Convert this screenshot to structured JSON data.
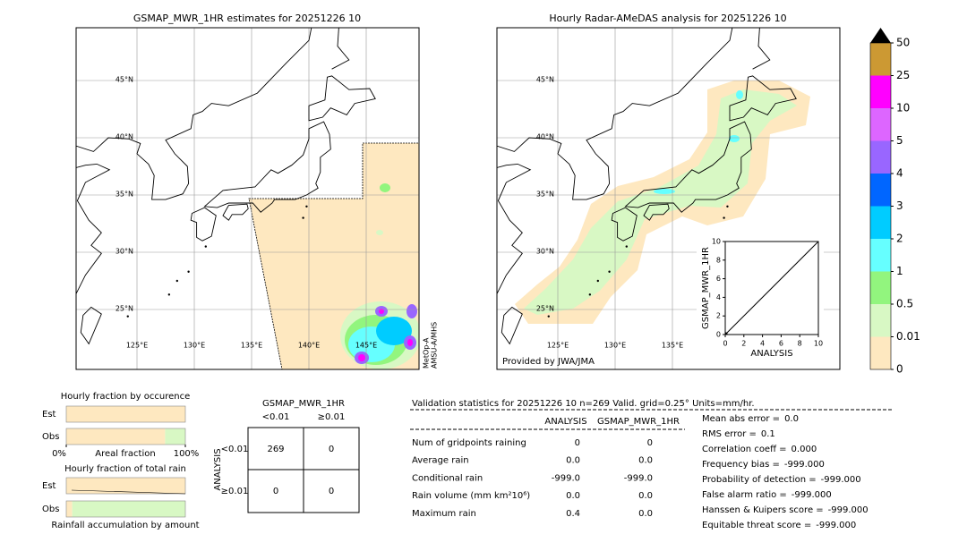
{
  "left_map": {
    "title": "GSMAP_MWR_1HR estimates for 20251226 10",
    "lat_labels": [
      {
        "value": 45,
        "label": "45°N"
      },
      {
        "value": 40,
        "label": "40°N"
      },
      {
        "value": 35,
        "label": "35°N"
      },
      {
        "value": 30,
        "label": "30°N"
      },
      {
        "value": 25,
        "label": "25°N"
      }
    ],
    "lon_labels": [
      {
        "value": 125,
        "label": "125°E"
      },
      {
        "value": 130,
        "label": "130°E"
      },
      {
        "value": 135,
        "label": "135°E"
      },
      {
        "value": 140,
        "label": "140°E"
      },
      {
        "value": 145,
        "label": "145°E"
      }
    ],
    "satellite_label": [
      "MetOp-A",
      "AMSU-A/MHS"
    ]
  },
  "right_map": {
    "title": "Hourly Radar-AMeDAS analysis for 20251226 10",
    "lat_labels": [
      {
        "value": 45,
        "label": "45°N"
      },
      {
        "value": 40,
        "label": "40°N"
      },
      {
        "value": 35,
        "label": "35°N"
      },
      {
        "value": 30,
        "label": "30°N"
      },
      {
        "value": 25,
        "label": "25°N"
      }
    ],
    "lon_labels": [
      {
        "value": 125,
        "label": "125°E"
      },
      {
        "value": 130,
        "label": "130°E"
      },
      {
        "value": 135,
        "label": "135°E"
      }
    ],
    "credit": "Provided by JWA/JMA"
  },
  "scatter": {
    "xlabel": "ANALYSIS",
    "ylabel": "GSMAP_MWR_1HR",
    "xlim": [
      0,
      10
    ],
    "ylim": [
      0,
      10
    ],
    "xticks": [
      0,
      2,
      4,
      6,
      8,
      10
    ],
    "yticks": [
      0,
      2,
      4,
      6,
      8,
      10
    ]
  },
  "colorbar": {
    "levels": [
      0,
      0.01,
      0.5,
      1,
      2,
      3,
      4,
      5,
      10,
      25,
      50
    ],
    "colors": [
      "#fee8c0",
      "#d8f8c4",
      "#92f57e",
      "#66ffff",
      "#00ccff",
      "#0066ff",
      "#9966ff",
      "#dd66ff",
      "#ff00ff",
      "#cc9933"
    ],
    "extend_color": "#000000"
  },
  "occurrence": {
    "title": "Hourly fraction by occurence",
    "rows": [
      "Est",
      "Obs"
    ],
    "rain_fraction": [
      0,
      17
    ],
    "xticks": [
      {
        "value": 0,
        "label": "0%"
      },
      {
        "value": 100,
        "label": "100%"
      }
    ],
    "xlabel": "Areal fraction"
  },
  "total_rain": {
    "title": "Hourly fraction of total rain",
    "rows": [
      "Est",
      "Obs"
    ],
    "rain_fraction": [
      0,
      95
    ],
    "xlabel": "Rainfall accumulation by amount"
  },
  "contingency": {
    "title": "GSMAP_MWR_1HR",
    "col_labels": [
      "<0.01",
      "≥0.01"
    ],
    "row_title": "ANALYSIS",
    "row_labels": [
      "<0.01",
      "≥0.01"
    ],
    "cells": [
      [
        269,
        0
      ],
      [
        0,
        0
      ]
    ]
  },
  "validation": {
    "header": "Validation statistics for 20251226 10  n=269 Valid. grid=0.25° Units=mm/hr.",
    "columns": [
      "ANALYSIS",
      "GSMAP_MWR_1HR"
    ],
    "rows": [
      {
        "label": "Num of gridpoints raining",
        "values": [
          "0",
          "0"
        ]
      },
      {
        "label": "Average rain",
        "values": [
          "0.0",
          "0.0"
        ]
      },
      {
        "label": "Conditional rain",
        "values": [
          "-999.0",
          "-999.0"
        ]
      },
      {
        "label": "Rain volume (mm km²10⁶)",
        "values": [
          "0.0",
          "0.0"
        ]
      },
      {
        "label": "Maximum rain",
        "values": [
          "0.4",
          "0.0"
        ]
      }
    ],
    "scores": [
      {
        "label": "Mean abs error =",
        "value": "0.0"
      },
      {
        "label": "RMS error =",
        "value": "0.1"
      },
      {
        "label": "Correlation coeff =",
        "value": "0.000"
      },
      {
        "label": "Frequency bias =",
        "value": "-999.000"
      },
      {
        "label": "Probability of detection =",
        "value": "-999.000"
      },
      {
        "label": "False alarm ratio =",
        "value": "-999.000"
      },
      {
        "label": "Hanssen & Kuipers score =",
        "value": "-999.000"
      },
      {
        "label": "Equitable threat score =",
        "value": "-999.000"
      }
    ]
  }
}
